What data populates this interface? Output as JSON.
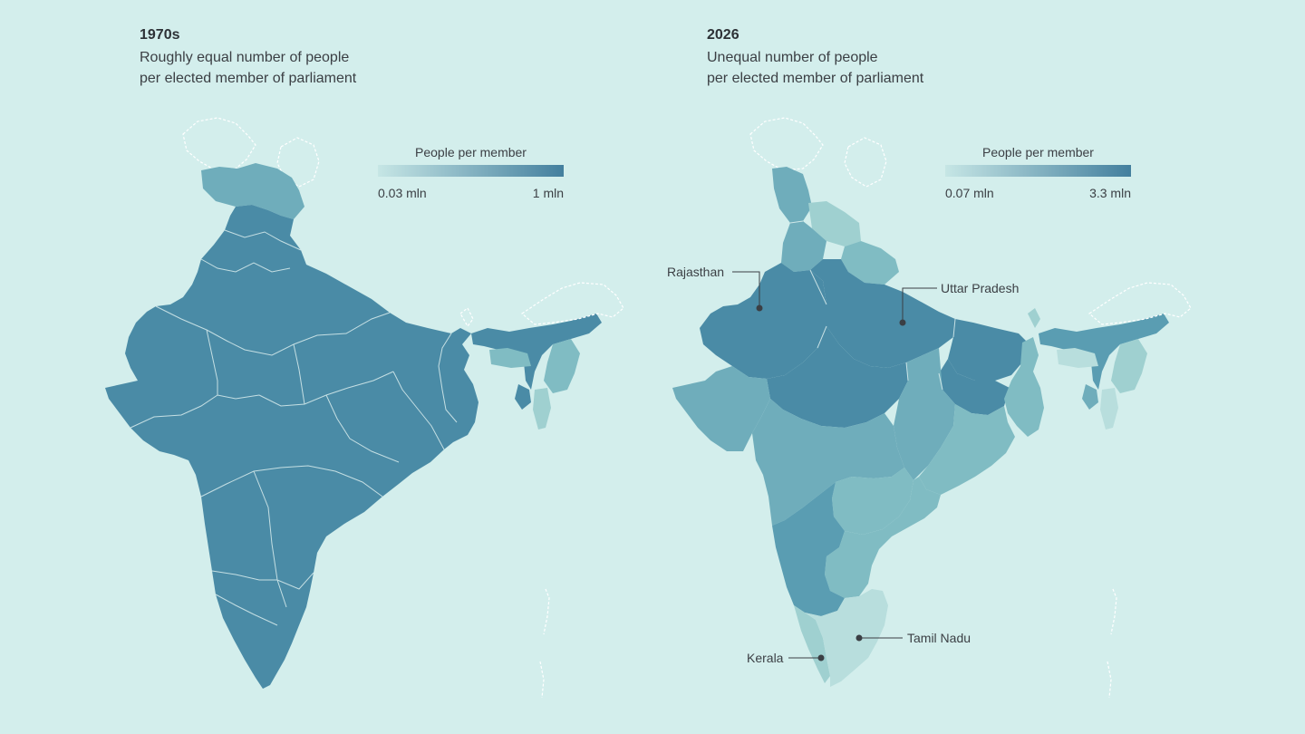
{
  "colors": {
    "background": "#d3eeec",
    "dark": "#4a8ba6",
    "mid_dark": "#5a9db2",
    "mid": "#6fadbb",
    "light_mid": "#80bcc3",
    "light": "#9fd0d0",
    "lightest": "#b8dedd"
  },
  "left": {
    "year": "1970s",
    "subtitle_line1": "Roughly equal number of people",
    "subtitle_line2": "per elected member of parliament",
    "legend": {
      "title": "People per member",
      "min_label": "0.03 mln",
      "max_label": "1 mln",
      "color_min": "#c6e6e5",
      "color_max": "#437f9e"
    }
  },
  "right": {
    "year": "2026",
    "subtitle_line1": "Unequal number of people",
    "subtitle_line2": "per elected member of parliament",
    "legend": {
      "title": "People per member",
      "min_label": "0.07 mln",
      "max_label": "3.3 mln",
      "color_min": "#c6e6e5",
      "color_max": "#437f9e"
    },
    "callouts": {
      "rajasthan": "Rajasthan",
      "uttar_pradesh": "Uttar Pradesh",
      "tamil_nadu": "Tamil Nadu",
      "kerala": "Kerala"
    }
  }
}
